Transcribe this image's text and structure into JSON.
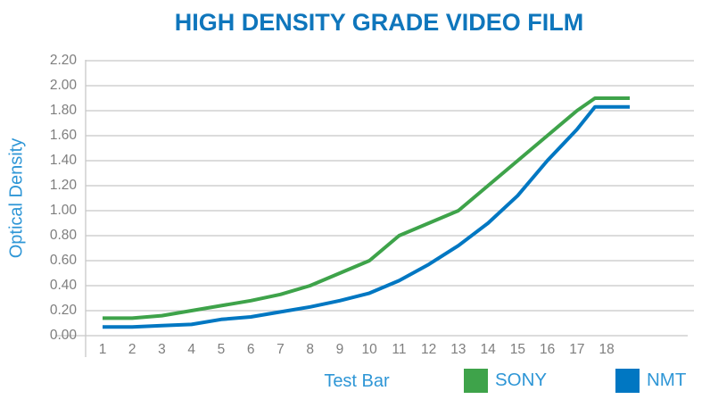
{
  "title": "HIGH DENSITY GRADE VIDEO FILM",
  "chart_data": {
    "type": "line",
    "title": "HIGH DENSITY GRADE VIDEO FILM",
    "xlabel": "Test Bar",
    "ylabel": "Optical Density",
    "categories": [
      "1",
      "2",
      "3",
      "4",
      "5",
      "6",
      "7",
      "8",
      "9",
      "10",
      "11",
      "12",
      "13",
      "14",
      "15",
      "16",
      "17",
      "18"
    ],
    "y_ticks": [
      "0.00",
      "0.20",
      "0.40",
      "0.60",
      "0.80",
      "1.00",
      "1.20",
      "1.40",
      "1.60",
      "1.80",
      "2.00",
      "2.20"
    ],
    "ylim": [
      0.0,
      2.2
    ],
    "grid": "horizontal",
    "legend_position": "bottom-right",
    "series": [
      {
        "name": "SONY",
        "color": "#3EA34A",
        "values": [
          0.14,
          0.14,
          0.16,
          0.2,
          0.24,
          0.28,
          0.33,
          0.4,
          0.5,
          0.6,
          0.8,
          0.9,
          1.0,
          1.2,
          1.4,
          1.6,
          1.8,
          1.9
        ]
      },
      {
        "name": "NMT",
        "color": "#0077C2",
        "values": [
          0.07,
          0.07,
          0.08,
          0.09,
          0.13,
          0.15,
          0.19,
          0.23,
          0.28,
          0.34,
          0.44,
          0.57,
          0.72,
          0.9,
          1.12,
          1.4,
          1.65,
          1.83
        ]
      }
    ],
    "annotations": "both curves flatten to a plateau just before test bar 18 and extend slightly beyond it"
  },
  "colors": {
    "title_blue": "#0F76BC",
    "axis_label_blue": "#2E96D6",
    "tick_gray": "#7E7E7E",
    "grid_gray": "#C8C8C8"
  }
}
